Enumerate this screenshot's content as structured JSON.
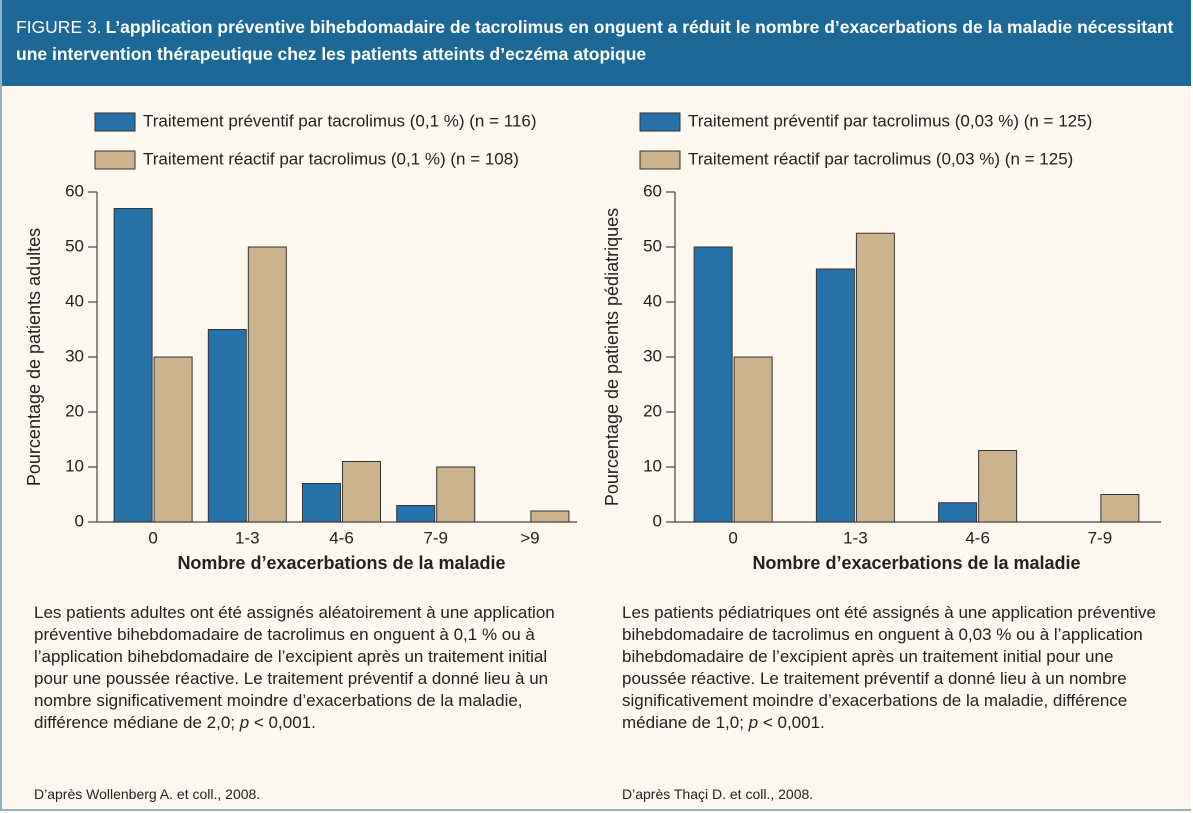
{
  "figure": {
    "label": "FIGURE 3.",
    "title": "L’application préventive bihebdomadaire de tacrolimus en onguent a réduit le nombre d’exacerbations de la maladie nécessitant une intervention thérapeutique chez les patients atteints d’eczéma atopique"
  },
  "chart_data": [
    {
      "type": "bar",
      "categories": [
        "0",
        "1-3",
        "4-6",
        "7-9",
        ">9"
      ],
      "series": [
        {
          "name": "Traitement préventif par tacrolimus (0,1 %) (n = 116)",
          "color": "#2872aa",
          "values": [
            57,
            35,
            7,
            3,
            0
          ]
        },
        {
          "name": "Traitement réactif par tacrolimus (0,1 %) (n = 108)",
          "color": "#cbb38e",
          "values": [
            30,
            50,
            11,
            10,
            2
          ]
        }
      ],
      "ylim": [
        0,
        60
      ],
      "yticks": [
        0,
        10,
        20,
        30,
        40,
        50,
        60
      ],
      "xlabel": "Nombre d’exacerbations de la maladie",
      "ylabel": "Pourcentage de patients adultes",
      "caption": [
        "Les patients adultes ont été assignés aléatoirement à une application préventive bihebdomadaire de tacrolimus en onguent à 0,1 % ou à l’application bihebdomadaire de l’excipient après un traitement initial pour une poussée réactive. Le traitement préventif a donné lieu à un nombre significativement moindre d’exacerbations de la maladie, différence médiane de 2,0; ",
        "p",
        " < 0,001."
      ],
      "source": "D’après Wollenberg A. et coll., 2008."
    },
    {
      "type": "bar",
      "categories": [
        "0",
        "1-3",
        "4-6",
        "7-9"
      ],
      "series": [
        {
          "name": "Traitement préventif par tacrolimus (0,03 %) (n = 125)",
          "color": "#2872aa",
          "values": [
            50,
            46,
            3.5,
            0
          ]
        },
        {
          "name": "Traitement réactif par tacrolimus (0,03 %) (n = 125)",
          "color": "#cbb38e",
          "values": [
            30,
            52.5,
            13,
            5
          ]
        }
      ],
      "ylim": [
        0,
        60
      ],
      "yticks": [
        0,
        10,
        20,
        30,
        40,
        50,
        60
      ],
      "xlabel": "Nombre d’exacerbations de la maladie",
      "ylabel": "Pourcentage de patients pédiatriques",
      "caption": [
        "Les patients pédiatriques ont été assignés à une application préventive bihebdomadaire de tacrolimus en onguent à 0,03 % ou à l’application bihebdomadaire de l’excipient après un traitement initial pour une poussée réactive. Le traitement préventif a donné lieu à un nombre significativement moindre d’exacerbations de la maladie, différence médiane de 1,0; ",
        "p",
        " < 0,001."
      ],
      "source": "D’après Thaçi D. et coll., 2008."
    }
  ]
}
